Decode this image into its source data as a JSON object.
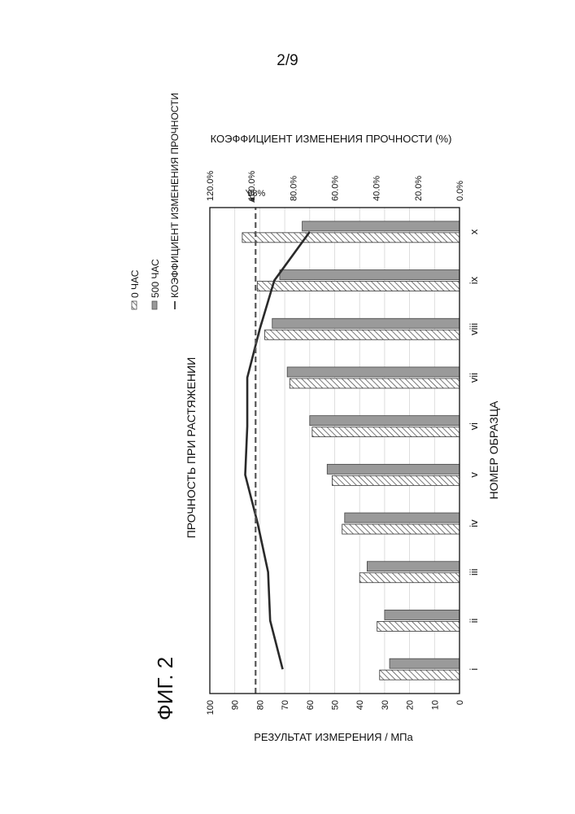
{
  "page_number": "2/9",
  "figure_label": "ФИГ. 2",
  "chart_data": {
    "type": "bar",
    "orientation": "rotated 90° counter-clockwise",
    "title": "ПРОЧНОСТЬ ПРИ РАСТЯЖЕНИИ",
    "xlabel": "НОМЕР ОБРАЗЦА",
    "ylabel": "РЕЗУЛЬТАТ ИЗМЕРЕНИЯ / МПа",
    "y2label": "КОЭФФИЦИЕНТ ИЗМЕНЕНИЯ ПРОЧНОСТИ (%)",
    "categories": [
      "i",
      "ii",
      "iii",
      "iv",
      "v",
      "vi",
      "vii",
      "viii",
      "ix",
      "x"
    ],
    "ylim": [
      0,
      100
    ],
    "yticks": [
      "0",
      "10",
      "20",
      "30",
      "40",
      "50",
      "60",
      "70",
      "80",
      "90",
      "100"
    ],
    "y2lim": [
      0,
      1.2
    ],
    "y2ticks": [
      "0.0%",
      "20.0%",
      "40.0%",
      "60.0%",
      "80.0%",
      "100.0%",
      "120.0%"
    ],
    "series": [
      {
        "name": "0 ЧАС",
        "kind": "bar",
        "pattern": "hatched",
        "values": [
          32,
          33,
          40,
          47,
          51,
          59,
          68,
          78,
          81,
          87
        ]
      },
      {
        "name": "500 ЧАС",
        "kind": "bar",
        "pattern": "gray",
        "values": [
          28,
          30,
          37,
          46,
          53,
          60,
          69,
          75,
          72,
          63
        ]
      },
      {
        "name": "КОЭФФИЦИЕНТ ИЗМЕНЕНИЯ ПРОЧНОСТИ",
        "kind": "line",
        "axis": "y2",
        "values": [
          0.85,
          0.91,
          0.92,
          0.97,
          1.03,
          1.02,
          1.02,
          0.96,
          0.89,
          0.72
        ]
      }
    ],
    "reference_line": {
      "value": 0.98,
      "label": "98%",
      "axis": "y2",
      "style": "dashed"
    },
    "grid": true,
    "legend_position": "top"
  }
}
